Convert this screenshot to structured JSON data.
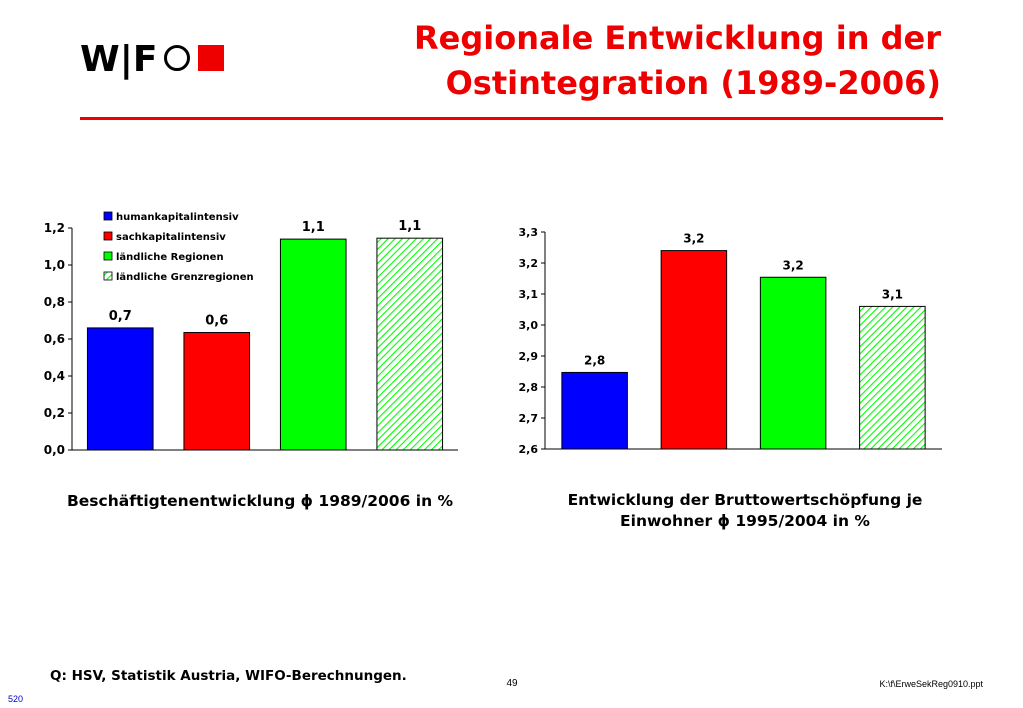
{
  "header": {
    "logo_text": "W|F",
    "title": "Regionale Entwicklung in der\nOstintegration (1989-2006)"
  },
  "colors": {
    "accent": "#ee0000",
    "humankapitalintensiv": "#0000ff",
    "sachkapitalintensiv": "#ff0000",
    "laendliche_regionen": "#00ff00",
    "laendliche_grenzregionen": "#00ff00"
  },
  "chart_data": [
    {
      "type": "bar",
      "categories": [
        "humankapitalintensiv",
        "sachkapitalintensiv",
        "ländliche Regionen",
        "ländliche Grenzregionen"
      ],
      "values": [
        0.66,
        0.635,
        1.14,
        1.145
      ],
      "data_labels": [
        "0,7",
        "0,6",
        "1,1",
        "1,1"
      ],
      "patterns": [
        "solid",
        "solid",
        "solid",
        "hatched"
      ],
      "ylim": [
        0.0,
        1.2
      ],
      "yticks": [
        "0,0",
        "0,2",
        "0,4",
        "0,6",
        "0,8",
        "1,0",
        "1,2"
      ],
      "legend": [
        "humankapitalintensiv",
        "sachkapitalintensiv",
        "ländliche Regionen",
        "ländliche Grenzregionen"
      ],
      "legend_position": "top-left",
      "grid": false,
      "caption": "Beschäftigtenentwicklung ϕ 1989/2006 in %"
    },
    {
      "type": "bar",
      "categories": [
        "humankapitalintensiv",
        "sachkapitalintensiv",
        "ländliche Regionen",
        "ländliche Grenzregionen"
      ],
      "values": [
        2.847,
        3.24,
        3.154,
        3.06
      ],
      "data_labels": [
        "2,8",
        "3,2",
        "3,2",
        "3,1"
      ],
      "patterns": [
        "solid",
        "solid",
        "solid",
        "hatched"
      ],
      "ylim": [
        2.6,
        3.3
      ],
      "yticks": [
        "2,6",
        "2,7",
        "2,8",
        "2,9",
        "3,0",
        "3,1",
        "3,2",
        "3,3"
      ],
      "grid": false,
      "caption": "Entwicklung der Bruttowertschöpfung je\nEinwohner ϕ 1995/2004 in %"
    }
  ],
  "footer": {
    "source": "Q: HSV, Statistik Austria, WIFO-Berechnungen.",
    "page_number": "49",
    "file_path": "K:\\f\\ErweSekReg0910.ppt",
    "slide_id": "520"
  }
}
